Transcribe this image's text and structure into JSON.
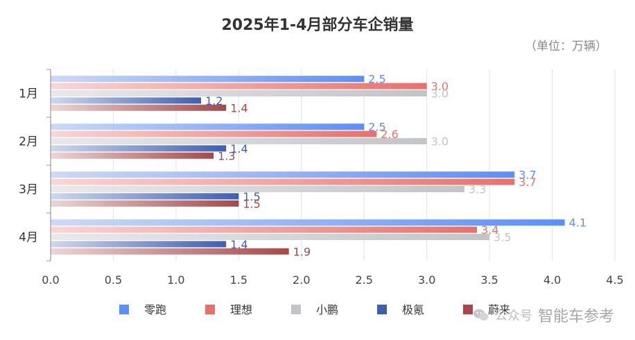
{
  "chart_data": {
    "type": "bar",
    "orientation": "horizontal",
    "title": "2025年1-4月部分车企销量",
    "unit_label": "（单位：万辆）",
    "categories": [
      "1月",
      "2月",
      "3月",
      "4月"
    ],
    "series": [
      {
        "name": "零跑",
        "values": [
          2.5,
          2.5,
          3.7,
          4.1
        ],
        "labels": [
          "2.5",
          "2.5",
          "3.7",
          "4.1"
        ],
        "color": "#5b8ff9",
        "light": "#cdd9f6"
      },
      {
        "name": "理想",
        "values": [
          3.0,
          2.6,
          3.7,
          3.4
        ],
        "labels": [
          "3.0",
          "2.6",
          "3.7",
          "3.4"
        ],
        "color": "#e8706b",
        "light": "#f8d6d6"
      },
      {
        "name": "小鹏",
        "values": [
          3.0,
          3.0,
          3.3,
          3.5
        ],
        "labels": [
          "3.0",
          "3.0",
          "3.3",
          "3.5"
        ],
        "color": "#c2c4c8",
        "light": "#e9e9ea"
      },
      {
        "name": "极氪",
        "values": [
          1.2,
          1.4,
          1.5,
          1.4
        ],
        "labels": [
          "1.2",
          "1.4",
          "1.5",
          "1.4"
        ],
        "color": "#3e5fb0",
        "light": "#cfd8ec"
      },
      {
        "name": "蔚来",
        "values": [
          1.4,
          1.3,
          1.5,
          1.9
        ],
        "labels": [
          "1.4",
          "1.3",
          "1.5",
          "1.9"
        ],
        "color": "#a84848",
        "light": "#ecd5d5"
      }
    ],
    "xlim": [
      0,
      4.5
    ],
    "xticks": [
      "0.0",
      "0.5",
      "1.0",
      "1.5",
      "2.0",
      "2.5",
      "3.0",
      "3.5",
      "4.0",
      "4.5"
    ],
    "grid": true,
    "legend": "bottom-center"
  },
  "watermark": {
    "prefix": "公众号",
    "name": "智能车参考"
  }
}
